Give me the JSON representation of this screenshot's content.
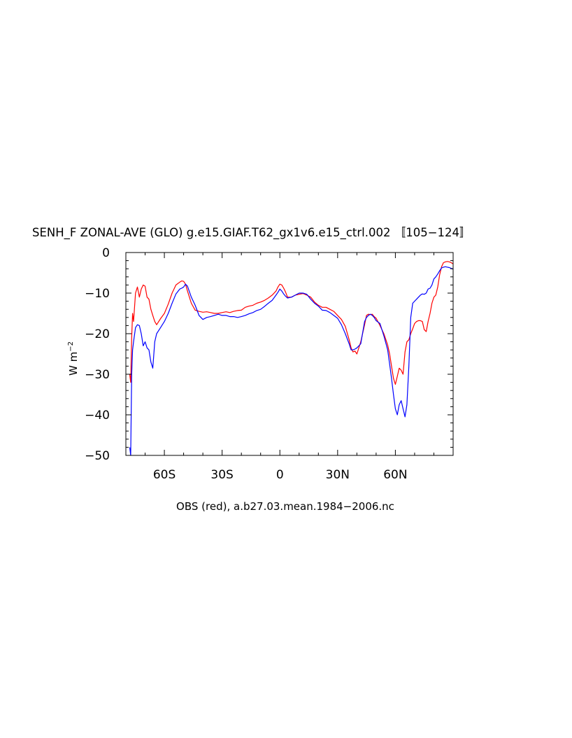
{
  "chart_data": {
    "type": "line",
    "title": "SENH_F ZONAL-AVE (GLO) g.e15.GIAF.T62_gx1v6.e15_ctrl.002 〚105−124〛",
    "xlabel": "OBS (red), a.b27.03.mean.1984−2006.nc",
    "ylabel": "W m",
    "ylabel_superscript": "−2",
    "xlim": [
      -80,
      90
    ],
    "ylim": [
      -50,
      0
    ],
    "xticks": [
      {
        "value": -60,
        "label": "60S"
      },
      {
        "value": -30,
        "label": "30S"
      },
      {
        "value": 0,
        "label": "0"
      },
      {
        "value": 30,
        "label": "30N"
      },
      {
        "value": 60,
        "label": "60N"
      }
    ],
    "yticks": [
      {
        "value": 0,
        "label": "0"
      },
      {
        "value": -10,
        "label": "−10"
      },
      {
        "value": -20,
        "label": "−20"
      },
      {
        "value": -30,
        "label": "−30"
      },
      {
        "value": -40,
        "label": "−40"
      },
      {
        "value": -50,
        "label": "−50"
      }
    ],
    "series": [
      {
        "color": "#ff0000",
        "x": [
          -78,
          -77.5,
          -77,
          -76.5,
          -76,
          -75,
          -74,
          -73,
          -72,
          -71,
          -70,
          -69,
          -68,
          -67,
          -66,
          -65,
          -64,
          -62,
          -60,
          -58,
          -56,
          -54,
          -52,
          -51,
          -50,
          -49,
          -48,
          -46,
          -44,
          -42,
          -40,
          -38,
          -36,
          -34,
          -32,
          -30,
          -28,
          -26,
          -24,
          -22,
          -20,
          -18,
          -16,
          -14,
          -12,
          -10,
          -8,
          -6,
          -4,
          -2,
          -1,
          0,
          1,
          2,
          3,
          4,
          6,
          8,
          10,
          12,
          14,
          16,
          18,
          20,
          22,
          24,
          26,
          28,
          30,
          32,
          34,
          36,
          37,
          38,
          39,
          40,
          42,
          44,
          45,
          46,
          47,
          48,
          49,
          50,
          52,
          54,
          56,
          57,
          58,
          59,
          60,
          61,
          62,
          63,
          64,
          65,
          66,
          67,
          68,
          69,
          70,
          71,
          72,
          73,
          74,
          75,
          76,
          77,
          78,
          79,
          80,
          81,
          82,
          83,
          84,
          85,
          86,
          87,
          88,
          89,
          90
        ],
        "y": [
          -30,
          -32,
          -21,
          -15,
          -17,
          -10,
          -8.5,
          -11,
          -9,
          -8,
          -8.3,
          -11,
          -11.5,
          -14,
          -15.5,
          -17,
          -17.8,
          -16.3,
          -15,
          -12.7,
          -10,
          -8,
          -7.3,
          -7,
          -7.1,
          -7.8,
          -9.5,
          -12.5,
          -14.2,
          -14.5,
          -14.7,
          -14.6,
          -14.8,
          -15,
          -15,
          -14.8,
          -14.6,
          -14.8,
          -14.5,
          -14.3,
          -14.2,
          -13.5,
          -13.2,
          -13,
          -12.5,
          -12.2,
          -11.8,
          -11.2,
          -10.5,
          -9.5,
          -8.5,
          -7.8,
          -8,
          -8.8,
          -9.8,
          -11,
          -11,
          -10.5,
          -10.3,
          -10.1,
          -10.5,
          -11,
          -12.2,
          -13,
          -13.5,
          -13.5,
          -14,
          -14.5,
          -15.5,
          -16.5,
          -18.2,
          -21.5,
          -23.5,
          -24.5,
          -24.3,
          -25,
          -22,
          -17.8,
          -15.5,
          -15.2,
          -15.3,
          -15.2,
          -15.8,
          -16.2,
          -18,
          -20,
          -22.8,
          -25,
          -28,
          -31,
          -32.5,
          -30.5,
          -28.5,
          -29,
          -30,
          -24.5,
          -22,
          -21.5,
          -20,
          -18.8,
          -17.5,
          -17,
          -16.8,
          -16.8,
          -17,
          -19,
          -19.5,
          -17,
          -15,
          -12.5,
          -11,
          -10.5,
          -8.5,
          -5.5,
          -3.5,
          -2.5,
          -2.3,
          -2.2,
          -2.3,
          -2.5,
          -2.8
        ]
      },
      {
        "color": "#0000ff",
        "x": [
          -78,
          -77.5,
          -77,
          -76.5,
          -76,
          -75,
          -74,
          -73,
          -72,
          -71,
          -70,
          -69,
          -68,
          -67,
          -66,
          -65,
          -64,
          -62,
          -60,
          -58,
          -56,
          -54,
          -52,
          -51,
          -50,
          -49,
          -48,
          -46,
          -44,
          -42,
          -40,
          -38,
          -36,
          -34,
          -32,
          -30,
          -28,
          -26,
          -24,
          -22,
          -20,
          -18,
          -16,
          -14,
          -12,
          -10,
          -8,
          -6,
          -4,
          -2,
          -1,
          0,
          1,
          2,
          3,
          4,
          6,
          8,
          10,
          12,
          14,
          16,
          18,
          20,
          22,
          24,
          26,
          28,
          30,
          32,
          34,
          36,
          37,
          38,
          39,
          40,
          42,
          44,
          45,
          46,
          47,
          48,
          49,
          50,
          52,
          54,
          56,
          57,
          58,
          59,
          60,
          61,
          62,
          63,
          64,
          65,
          66,
          67,
          68,
          69,
          70,
          71,
          72,
          73,
          74,
          75,
          76,
          77,
          78,
          79,
          80,
          81,
          82,
          83,
          84,
          85,
          86,
          87,
          88,
          89,
          90
        ],
        "y": [
          -48,
          -50,
          -30,
          -24,
          -22,
          -18.5,
          -17.8,
          -18,
          -20,
          -23,
          -22,
          -23.5,
          -24,
          -27,
          -28.5,
          -22,
          -20,
          -18.5,
          -17,
          -15,
          -12.5,
          -10.2,
          -9,
          -8.8,
          -8.5,
          -7.8,
          -8.3,
          -11,
          -13,
          -15.5,
          -16.5,
          -16,
          -15.8,
          -15.5,
          -15.2,
          -15.5,
          -15.5,
          -15.8,
          -15.8,
          -16,
          -15.8,
          -15.5,
          -15.1,
          -14.8,
          -14.3,
          -14,
          -13.3,
          -12.5,
          -11.8,
          -10.5,
          -9.8,
          -9,
          -9.5,
          -10.2,
          -10.8,
          -11.2,
          -11,
          -10.5,
          -10,
          -10,
          -10.3,
          -11.5,
          -12.5,
          -13.2,
          -14.2,
          -14.3,
          -14.8,
          -15.5,
          -16.2,
          -17.8,
          -20,
          -22.5,
          -24,
          -24,
          -23.8,
          -23.5,
          -22.5,
          -17,
          -16,
          -15.5,
          -15.2,
          -15.5,
          -16,
          -16.8,
          -17.5,
          -20.5,
          -24,
          -27.5,
          -31,
          -35,
          -38.5,
          -40,
          -37.5,
          -36.5,
          -38.5,
          -40.5,
          -37.5,
          -28,
          -16,
          -12.5,
          -12,
          -11.5,
          -11,
          -10.5,
          -10.2,
          -10.3,
          -10,
          -9,
          -8.8,
          -8,
          -6.5,
          -6,
          -5.3,
          -4.5,
          -3.8,
          -3.6,
          -3.5,
          -3.6,
          -3.7,
          -3.9,
          -4.1
        ]
      }
    ]
  }
}
